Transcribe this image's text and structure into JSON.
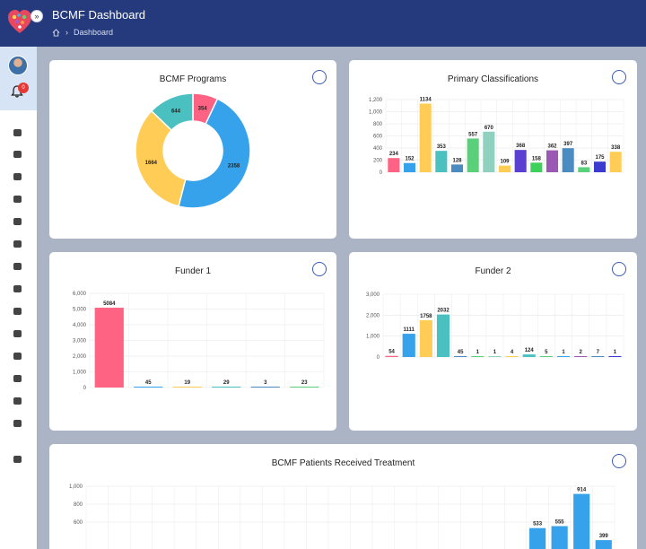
{
  "header": {
    "title": "BCMF Dashboard",
    "breadcrumb": "Dashboard"
  },
  "sidebar": {
    "badge": "0",
    "icons": [
      "home-icon",
      "hospital-bed-icon",
      "wheelchair-icon",
      "eye-icon",
      "documents-icon",
      "syringe-icon",
      "person-icon",
      "truck-icon",
      "monitor-icon",
      "edit-icon",
      "bank-icon",
      "fire-icon",
      "hand-heart-icon",
      "users-icon",
      "settings-icon"
    ]
  },
  "colors": {
    "pink": "#ff6384",
    "blue": "#36a2eb",
    "yellow": "#ffcd56",
    "teal": "#4bc0c0",
    "steel": "#4a8bc2",
    "green": "#5bd07a",
    "sage": "#8fd0bf",
    "purple": "#5a3fd0",
    "lime": "#3dd05a",
    "violet": "#9b59b6",
    "navy": "#3b3bd0",
    "orange": "#ffb300",
    "header": "#253a7c"
  },
  "chart_data": [
    {
      "type": "pie",
      "title": "BCMF Programs",
      "labels": [
        "",
        "",
        "",
        ""
      ],
      "values": [
        354,
        2358,
        1664,
        644
      ],
      "value_labels": [
        "354",
        "2358",
        "1664",
        "644"
      ],
      "colors": [
        "#ff6384",
        "#36a2eb",
        "#ffcd56",
        "#4bc0c0"
      ]
    },
    {
      "type": "bar",
      "title": "Primary Classifications",
      "values": [
        234,
        152,
        1134,
        353,
        128,
        557,
        670,
        109,
        368,
        158,
        362,
        397,
        83,
        175,
        338
      ],
      "value_labels": [
        "234",
        "152",
        "1134",
        "353",
        "128",
        "557",
        "670",
        "109",
        "368",
        "158",
        "362",
        "397",
        "83",
        "175",
        "338"
      ],
      "colors": [
        "#ff6384",
        "#36a2eb",
        "#ffcd56",
        "#4bc0c0",
        "#4a8bc2",
        "#5bd07a",
        "#8fd0bf",
        "#ffcd56",
        "#5a3fd0",
        "#3dd05a",
        "#9b59b6",
        "#4a8bc2",
        "#5bd07a",
        "#3b3bd0",
        "#ffcd56"
      ],
      "ylim": [
        0,
        1200
      ],
      "yticks": [
        "0",
        "200",
        "400",
        "600",
        "800",
        "1,000",
        "1,200"
      ],
      "grid": true
    },
    {
      "type": "bar",
      "title": "Funder 1",
      "values": [
        5084,
        45,
        19,
        29,
        3,
        23
      ],
      "value_labels": [
        "5084",
        "45",
        "19",
        "29",
        "3",
        "23"
      ],
      "colors": [
        "#ff6384",
        "#36a2eb",
        "#ffcd56",
        "#4bc0c0",
        "#4a8bc2",
        "#5bd07a"
      ],
      "ylim": [
        0,
        6000
      ],
      "yticks": [
        "0",
        "1,000",
        "2,000",
        "3,000",
        "4,000",
        "5,000",
        "6,000"
      ],
      "grid": true
    },
    {
      "type": "bar",
      "title": "Funder 2",
      "values": [
        54,
        1111,
        1758,
        2032,
        45,
        1,
        1,
        4,
        124,
        5,
        1,
        2,
        7,
        1
      ],
      "value_labels": [
        "54",
        "1111",
        "1758",
        "2032",
        "45",
        "1",
        "1",
        "4",
        "124",
        "5",
        "1",
        "2",
        "7",
        "1"
      ],
      "colors": [
        "#ff6384",
        "#36a2eb",
        "#ffcd56",
        "#4bc0c0",
        "#4a8bc2",
        "#5bd07a",
        "#8fd0bf",
        "#ffcd56",
        "#4bc0c0",
        "#5bd07a",
        "#36a2eb",
        "#9b59b6",
        "#4a8bc2",
        "#3b3bd0"
      ],
      "ylim": [
        0,
        3000
      ],
      "yticks": [
        "0",
        "1,000",
        "2,000",
        "3,000"
      ],
      "grid": true
    },
    {
      "type": "bar",
      "title": "BCMF Patients Received Treatment",
      "values": [
        0,
        0,
        0,
        0,
        0,
        0,
        0,
        0,
        0,
        0,
        0,
        0,
        0,
        0,
        0,
        0,
        0,
        0,
        0,
        0,
        533,
        555,
        914,
        399
      ],
      "value_labels": [
        "",
        "",
        "",
        "",
        "",
        "",
        "",
        "",
        "",
        "",
        "",
        "",
        "",
        "",
        "",
        "",
        "",
        "",
        "",
        "",
        "533",
        "555",
        "914",
        "399"
      ],
      "colors": [
        "#36a2eb"
      ],
      "ylim": [
        0,
        1000
      ],
      "yticks": [
        "600",
        "800",
        "1,000"
      ],
      "grid": true
    }
  ]
}
